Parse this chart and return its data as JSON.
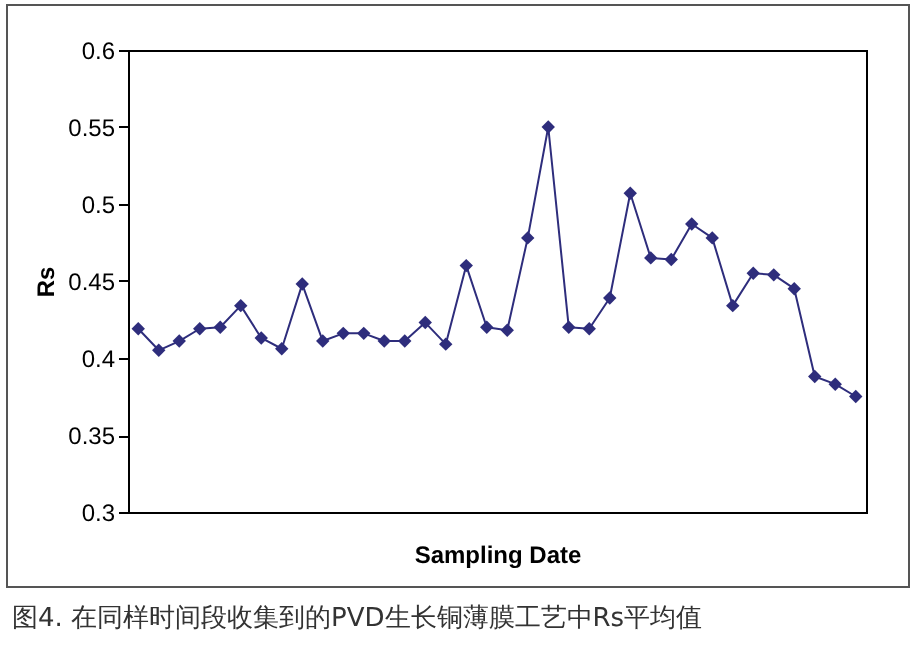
{
  "chart_data": {
    "type": "line",
    "xlabel": "Sampling Date",
    "ylabel": "Rs",
    "categories": [
      null,
      null,
      null,
      null,
      null,
      null,
      null,
      null,
      null,
      null,
      null,
      null,
      null,
      null,
      null,
      null,
      null,
      null,
      null,
      null,
      null,
      null,
      null,
      null,
      null,
      null,
      null,
      null,
      null,
      null,
      null,
      null,
      null,
      null,
      null,
      null
    ],
    "series": [
      {
        "color": "#2e2d7c",
        "values": [
          0.419,
          0.405,
          0.411,
          0.419,
          0.42,
          0.434,
          0.413,
          0.406,
          0.448,
          0.411,
          0.416,
          0.416,
          0.411,
          0.411,
          0.423,
          0.409,
          0.46,
          0.42,
          0.418,
          0.478,
          0.55,
          0.42,
          0.419,
          0.439,
          0.507,
          0.465,
          0.464,
          0.487,
          0.478,
          0.434,
          0.455,
          0.454,
          0.445,
          0.388,
          0.383,
          0.375
        ]
      }
    ],
    "ylim": [
      0.3,
      0.6
    ],
    "yticks": [
      0.3,
      0.35,
      0.4,
      0.45,
      0.5,
      0.55,
      0.6
    ],
    "grid": false,
    "marker": "diamond",
    "line_style": "solid",
    "annotations": [
      "图4. 在同样时间段收集到的PVD生长铜薄膜工艺中Rs平均值"
    ]
  }
}
